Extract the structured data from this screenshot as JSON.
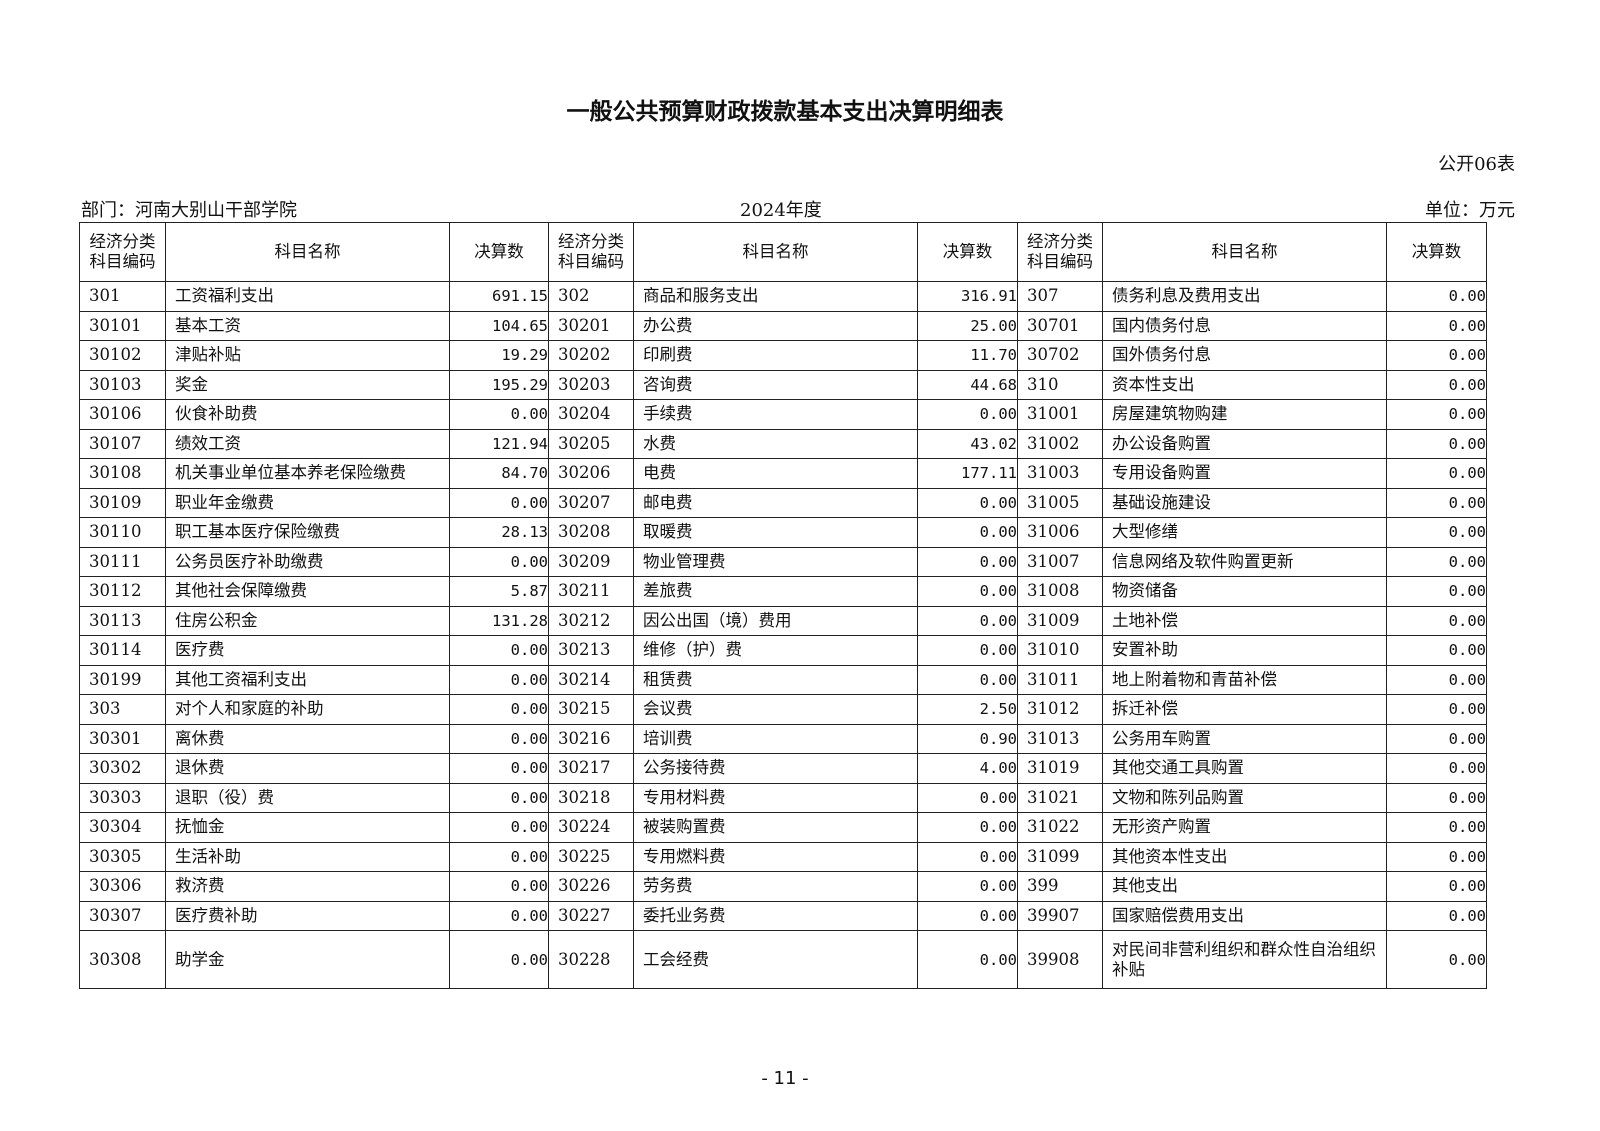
{
  "title": "一般公共预算财政拨款基本支出决算明细表",
  "table_no": "公开06表",
  "department": "部门：河南大别山干部学院",
  "year": "2024年度",
  "unit": "单位：万元",
  "headers": [
    "经济分类科目编码",
    "科目名称",
    "决算数",
    "经济分类科目编码",
    "科目名称",
    "决算数",
    "经济分类科目编码",
    "科目名称",
    "决算数"
  ],
  "rows": [
    [
      "301",
      "工资福利支出",
      "691.15",
      "302",
      "商品和服务支出",
      "316.91",
      "307",
      "债务利息及费用支出",
      "0.00"
    ],
    [
      "30101",
      "基本工资",
      "104.65",
      "30201",
      "办公费",
      "25.00",
      "30701",
      "国内债务付息",
      "0.00"
    ],
    [
      "30102",
      "津贴补贴",
      "19.29",
      "30202",
      "印刷费",
      "11.70",
      "30702",
      "国外债务付息",
      "0.00"
    ],
    [
      "30103",
      "奖金",
      "195.29",
      "30203",
      "咨询费",
      "44.68",
      "310",
      "资本性支出",
      "0.00"
    ],
    [
      "30106",
      "伙食补助费",
      "0.00",
      "30204",
      "手续费",
      "0.00",
      "31001",
      "房屋建筑物购建",
      "0.00"
    ],
    [
      "30107",
      "绩效工资",
      "121.94",
      "30205",
      "水费",
      "43.02",
      "31002",
      "办公设备购置",
      "0.00"
    ],
    [
      "30108",
      "机关事业单位基本养老保险缴费",
      "84.70",
      "30206",
      "电费",
      "177.11",
      "31003",
      "专用设备购置",
      "0.00"
    ],
    [
      "30109",
      "职业年金缴费",
      "0.00",
      "30207",
      "邮电费",
      "0.00",
      "31005",
      "基础设施建设",
      "0.00"
    ],
    [
      "30110",
      "职工基本医疗保险缴费",
      "28.13",
      "30208",
      "取暖费",
      "0.00",
      "31006",
      "大型修缮",
      "0.00"
    ],
    [
      "30111",
      "公务员医疗补助缴费",
      "0.00",
      "30209",
      "物业管理费",
      "0.00",
      "31007",
      "信息网络及软件购置更新",
      "0.00"
    ],
    [
      "30112",
      "其他社会保障缴费",
      "5.87",
      "30211",
      "差旅费",
      "0.00",
      "31008",
      "物资储备",
      "0.00"
    ],
    [
      "30113",
      "住房公积金",
      "131.28",
      "30212",
      "因公出国（境）费用",
      "0.00",
      "31009",
      "土地补偿",
      "0.00"
    ],
    [
      "30114",
      "医疗费",
      "0.00",
      "30213",
      "维修（护）费",
      "0.00",
      "31010",
      "安置补助",
      "0.00"
    ],
    [
      "30199",
      "其他工资福利支出",
      "0.00",
      "30214",
      "租赁费",
      "0.00",
      "31011",
      "地上附着物和青苗补偿",
      "0.00"
    ],
    [
      "303",
      "对个人和家庭的补助",
      "0.00",
      "30215",
      "会议费",
      "2.50",
      "31012",
      "拆迁补偿",
      "0.00"
    ],
    [
      "30301",
      "离休费",
      "0.00",
      "30216",
      "培训费",
      "0.90",
      "31013",
      "公务用车购置",
      "0.00"
    ],
    [
      "30302",
      "退休费",
      "0.00",
      "30217",
      "公务接待费",
      "4.00",
      "31019",
      "其他交通工具购置",
      "0.00"
    ],
    [
      "30303",
      "退职（役）费",
      "0.00",
      "30218",
      "专用材料费",
      "0.00",
      "31021",
      "文物和陈列品购置",
      "0.00"
    ],
    [
      "30304",
      "抚恤金",
      "0.00",
      "30224",
      "被装购置费",
      "0.00",
      "31022",
      "无形资产购置",
      "0.00"
    ],
    [
      "30305",
      "生活补助",
      "0.00",
      "30225",
      "专用燃料费",
      "0.00",
      "31099",
      "其他资本性支出",
      "0.00"
    ],
    [
      "30306",
      "救济费",
      "0.00",
      "30226",
      "劳务费",
      "0.00",
      "399",
      "其他支出",
      "0.00"
    ],
    [
      "30307",
      "医疗费补助",
      "0.00",
      "30227",
      "委托业务费",
      "0.00",
      "39907",
      "国家赔偿费用支出",
      "0.00"
    ],
    [
      "30308",
      "助学金",
      "0.00",
      "30228",
      "工会经费",
      "0.00",
      "39908",
      "对民间非营利组织和群众性自治组织补贴",
      "0.00"
    ]
  ],
  "page_number": "- 11 -"
}
